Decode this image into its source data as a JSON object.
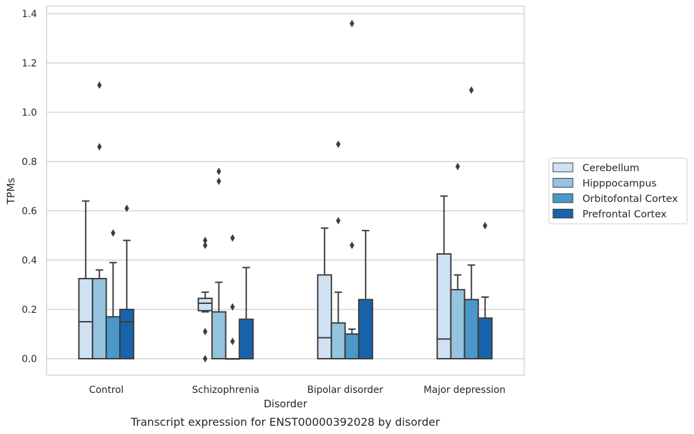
{
  "chart_data": {
    "type": "box",
    "title": "",
    "caption": "Transcript expression for ENST00000392028 by disorder",
    "xlabel": "Disorder",
    "ylabel": "TPMs",
    "ylim": [
      -0.065,
      1.43
    ],
    "yticks": [
      "0.0",
      "0.2",
      "0.4",
      "0.6",
      "0.8",
      "1.0",
      "1.2",
      "1.4"
    ],
    "grid": true,
    "legend_position": "right",
    "categories": [
      "Control",
      "Schizophrenia",
      "Bipolar disorder",
      "Major depression"
    ],
    "series": [
      {
        "name": "Cerebellum",
        "color": "#d0e1f2",
        "boxes": [
          {
            "whislo": 0.0,
            "q1": 0.0,
            "med": 0.15,
            "q3": 0.325,
            "whishi": 0.64,
            "fliers": []
          },
          {
            "whislo": 0.19,
            "q1": 0.195,
            "med": 0.225,
            "q3": 0.245,
            "whishi": 0.27,
            "fliers": [
              0.48,
              0.46,
              0.11,
              0.0
            ]
          },
          {
            "whislo": 0.0,
            "q1": 0.0,
            "med": 0.085,
            "q3": 0.34,
            "whishi": 0.53,
            "fliers": []
          },
          {
            "whislo": 0.0,
            "q1": 0.0,
            "med": 0.08,
            "q3": 0.425,
            "whishi": 0.66,
            "fliers": []
          }
        ]
      },
      {
        "name": "Hipppocampus",
        "color": "#94c4df",
        "boxes": [
          {
            "whislo": 0.0,
            "q1": 0.0,
            "med": 0.325,
            "q3": 0.325,
            "whishi": 0.36,
            "fliers": [
              1.11,
              0.86
            ]
          },
          {
            "whislo": 0.0,
            "q1": 0.0,
            "med": 0.0,
            "q3": 0.19,
            "whishi": 0.31,
            "fliers": [
              0.76,
              0.72
            ]
          },
          {
            "whislo": 0.0,
            "q1": 0.0,
            "med": 0.0,
            "q3": 0.145,
            "whishi": 0.27,
            "fliers": [
              0.87,
              0.56
            ]
          },
          {
            "whislo": 0.0,
            "q1": 0.0,
            "med": 0.0,
            "q3": 0.28,
            "whishi": 0.34,
            "fliers": [
              0.78
            ]
          }
        ]
      },
      {
        "name": "Orbitofontal Cortex",
        "color": "#4a98c9",
        "boxes": [
          {
            "whislo": 0.0,
            "q1": 0.0,
            "med": 0.0,
            "q3": 0.17,
            "whishi": 0.39,
            "fliers": [
              0.51
            ]
          },
          {
            "whislo": 0.0,
            "q1": 0.0,
            "med": 0.0,
            "q3": 0.0,
            "whishi": 0.0,
            "fliers": [
              0.49,
              0.21,
              0.07
            ]
          },
          {
            "whislo": 0.0,
            "q1": 0.0,
            "med": 0.0,
            "q3": 0.1,
            "whishi": 0.12,
            "fliers": [
              1.36,
              0.46
            ]
          },
          {
            "whislo": 0.0,
            "q1": 0.0,
            "med": 0.0,
            "q3": 0.24,
            "whishi": 0.38,
            "fliers": [
              1.09
            ]
          }
        ]
      },
      {
        "name": "Prefrontal Cortex",
        "color": "#1764ab",
        "boxes": [
          {
            "whislo": 0.0,
            "q1": 0.0,
            "med": 0.15,
            "q3": 0.2,
            "whishi": 0.48,
            "fliers": [
              0.61
            ]
          },
          {
            "whislo": 0.0,
            "q1": 0.0,
            "med": 0.0,
            "q3": 0.16,
            "whishi": 0.37,
            "fliers": []
          },
          {
            "whislo": 0.0,
            "q1": 0.0,
            "med": 0.0,
            "q3": 0.24,
            "whishi": 0.52,
            "fliers": []
          },
          {
            "whislo": 0.0,
            "q1": 0.0,
            "med": 0.0,
            "q3": 0.165,
            "whishi": 0.25,
            "fliers": [
              0.54
            ]
          }
        ]
      }
    ]
  }
}
